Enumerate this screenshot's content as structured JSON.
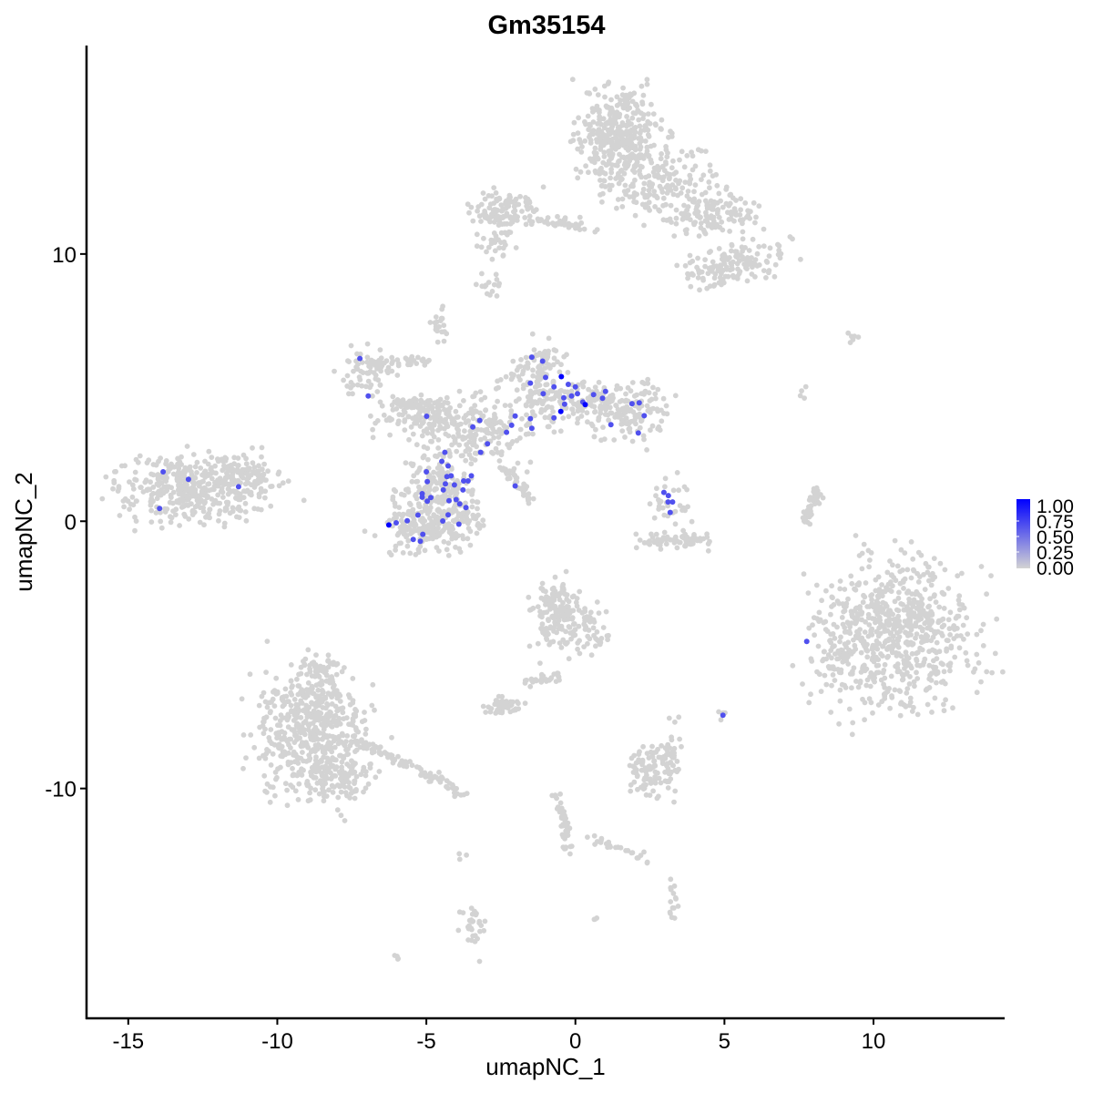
{
  "chart_data": {
    "type": "scatter",
    "title": "Gm35154",
    "xlabel": "umapNC_1",
    "ylabel": "umapNC_2",
    "xlim": [
      -16.4,
      14.4
    ],
    "ylim": [
      -18.6,
      17.8
    ],
    "x_ticks": [
      -15,
      -10,
      -5,
      0,
      5,
      10
    ],
    "y_ticks": [
      -10,
      0,
      10
    ],
    "grid": false,
    "colorscale": {
      "low": "#D3D3D3",
      "high": "#0000FF",
      "range": [
        0,
        1
      ]
    },
    "legend": {
      "position": "right",
      "labels": [
        "1.00",
        "0.75",
        "0.50",
        "0.25",
        "0.00"
      ]
    },
    "background_color_value": 0,
    "expressing_cells": [
      [
        -7.23,
        6.09,
        0.62
      ],
      [
        -6.95,
        4.69,
        0.62
      ],
      [
        -4.99,
        3.93,
        0.62
      ],
      [
        -3.21,
        3.77,
        0.62
      ],
      [
        -3.44,
        3.53,
        0.62
      ],
      [
        -2.95,
        2.9,
        0.62
      ],
      [
        -3.18,
        2.58,
        0.62
      ],
      [
        -2.31,
        3.33,
        0.62
      ],
      [
        -2.14,
        3.59,
        0.62
      ],
      [
        -2.02,
        3.94,
        0.62
      ],
      [
        -1.51,
        3.84,
        0.62
      ],
      [
        -1.46,
        3.48,
        0.62
      ],
      [
        -1.46,
        6.14,
        0.62
      ],
      [
        -1.1,
        5.99,
        0.62
      ],
      [
        -1.0,
        5.38,
        0.62
      ],
      [
        -1.51,
        5.17,
        0.62
      ],
      [
        -0.72,
        5.03,
        0.62
      ],
      [
        -1.08,
        4.77,
        0.62
      ],
      [
        -0.47,
        5.41,
        1.0
      ],
      [
        -0.24,
        5.12,
        0.62
      ],
      [
        0.0,
        5.03,
        0.62
      ],
      [
        -0.13,
        4.69,
        0.62
      ],
      [
        0.07,
        4.77,
        0.62
      ],
      [
        -0.36,
        4.38,
        0.62
      ],
      [
        -0.49,
        4.11,
        1.0
      ],
      [
        -0.72,
        3.87,
        0.62
      ],
      [
        -0.39,
        4.62,
        0.62
      ],
      [
        0.25,
        4.46,
        0.62
      ],
      [
        0.33,
        4.36,
        1.0
      ],
      [
        0.61,
        4.74,
        0.62
      ],
      [
        1.01,
        4.86,
        0.62
      ],
      [
        0.91,
        4.6,
        0.62
      ],
      [
        1.19,
        3.61,
        0.62
      ],
      [
        1.9,
        4.4,
        0.62
      ],
      [
        2.14,
        4.43,
        0.62
      ],
      [
        2.31,
        3.95,
        0.62
      ],
      [
        2.11,
        3.3,
        0.62
      ],
      [
        -4.38,
        2.58,
        0.62
      ],
      [
        -4.48,
        2.24,
        0.62
      ],
      [
        -4.27,
        2.07,
        0.62
      ],
      [
        -5.0,
        1.85,
        0.62
      ],
      [
        -4.31,
        1.67,
        0.62
      ],
      [
        -4.17,
        1.7,
        0.62
      ],
      [
        -4.97,
        1.48,
        0.62
      ],
      [
        -4.36,
        1.4,
        0.62
      ],
      [
        -4.06,
        1.36,
        0.62
      ],
      [
        -3.75,
        1.51,
        0.62
      ],
      [
        -3.6,
        1.51,
        0.62
      ],
      [
        -3.49,
        1.7,
        0.62
      ],
      [
        -3.77,
        1.17,
        0.62
      ],
      [
        -4.43,
        1.17,
        0.62
      ],
      [
        -5.14,
        1.03,
        0.62
      ],
      [
        -4.85,
        0.89,
        0.62
      ],
      [
        -5.14,
        0.9,
        0.62
      ],
      [
        -4.97,
        0.75,
        0.62
      ],
      [
        -4.24,
        0.77,
        0.62
      ],
      [
        -4.0,
        0.81,
        0.62
      ],
      [
        -3.88,
        0.65,
        0.62
      ],
      [
        -3.67,
        0.51,
        0.62
      ],
      [
        -5.28,
        0.23,
        0.62
      ],
      [
        -4.27,
        0.24,
        0.62
      ],
      [
        -6.01,
        -0.06,
        0.62
      ],
      [
        -5.64,
        0.02,
        0.62
      ],
      [
        -4.45,
        0.01,
        0.62
      ],
      [
        -3.91,
        -0.11,
        0.62
      ],
      [
        -6.26,
        -0.14,
        1.0
      ],
      [
        -5.12,
        -0.49,
        0.62
      ],
      [
        -5.44,
        -0.68,
        0.62
      ],
      [
        -5.2,
        -0.75,
        0.62
      ],
      [
        -2.02,
        1.32,
        0.62
      ],
      [
        2.97,
        1.08,
        0.62
      ],
      [
        3.12,
        0.96,
        0.62
      ],
      [
        3.11,
        0.72,
        0.62
      ],
      [
        3.26,
        0.72,
        0.62
      ],
      [
        3.18,
        0.33,
        0.62
      ],
      [
        -13.83,
        1.85,
        0.62
      ],
      [
        -12.98,
        1.57,
        0.62
      ],
      [
        -13.95,
        0.48,
        0.62
      ],
      [
        -11.3,
        1.29,
        0.62
      ],
      [
        7.76,
        -4.5,
        0.62
      ],
      [
        4.95,
        -7.26,
        0.62
      ]
    ]
  }
}
